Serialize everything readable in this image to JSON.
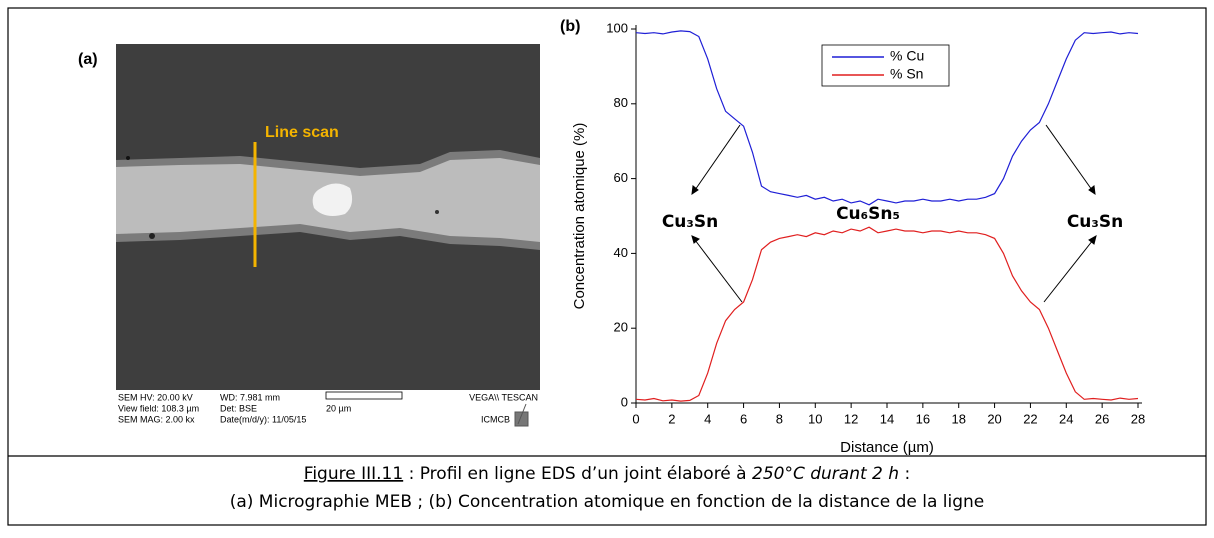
{
  "panel_a": {
    "label": "(a)",
    "line_scan": "Line scan",
    "info": [
      [
        "SEM HV: 20.00 kV",
        "WD: 7.981 mm",
        "VEGA\\\\ TESCAN"
      ],
      [
        "View field: 108.3 µm",
        "Det: BSE",
        "20 µm"
      ],
      [
        "SEM MAG: 2.00 kx",
        "Date(m/d/y): 11/05/15",
        "ICMCB"
      ]
    ]
  },
  "chart_data": {
    "type": "line",
    "panel_label": "(b)",
    "x_label": "Distance (µm)",
    "y_label": "Concentration atomique (%)",
    "xlim": [
      0,
      28
    ],
    "xticks": [
      0,
      2,
      4,
      6,
      8,
      10,
      12,
      14,
      16,
      18,
      20,
      22,
      24,
      26,
      28
    ],
    "ylim": [
      0,
      100
    ],
    "yticks": [
      0,
      20,
      40,
      60,
      80,
      100
    ],
    "legend": "top-center",
    "x": [
      0,
      0.5,
      1,
      1.5,
      2,
      2.5,
      3,
      3.5,
      4,
      4.5,
      5,
      5.5,
      6,
      6.5,
      7,
      7.5,
      8,
      8.5,
      9,
      9.5,
      10,
      10.5,
      11,
      11.5,
      12,
      12.5,
      13,
      13.5,
      14,
      14.5,
      15,
      15.5,
      16,
      16.5,
      17,
      17.5,
      18,
      18.5,
      19,
      19.5,
      20,
      20.5,
      21,
      21.5,
      22,
      22.5,
      23,
      23.5,
      24,
      24.5,
      25,
      25.5,
      26,
      26.5,
      27,
      27.5,
      28
    ],
    "series": [
      {
        "name": "% Cu",
        "color": "#1f1fd6",
        "values": [
          99,
          98.8,
          99,
          98.7,
          99.2,
          99.5,
          99.3,
          98,
          92,
          84,
          78,
          76,
          74,
          67,
          58,
          56.5,
          56,
          55.5,
          55,
          55.5,
          54.5,
          55,
          54,
          54.5,
          53.5,
          54,
          53,
          54.5,
          54,
          53.5,
          54,
          54,
          54.5,
          54,
          54,
          54.5,
          54,
          54.5,
          54.5,
          55,
          56,
          60,
          66,
          70,
          73,
          75,
          80,
          86,
          92,
          97,
          99,
          98.8,
          99,
          99.2,
          98.7,
          99,
          98.8
        ]
      },
      {
        "name": "% Sn",
        "color": "#e01f1f",
        "values": [
          1,
          0.8,
          1.2,
          0.6,
          0.8,
          0.5,
          0.7,
          2,
          8,
          16,
          22,
          25,
          27,
          33,
          41,
          43,
          44,
          44.5,
          45,
          44.5,
          45.5,
          45,
          46,
          45.5,
          46.5,
          46,
          47,
          45.5,
          46,
          46.5,
          46,
          46,
          45.5,
          46,
          46,
          45.5,
          46,
          45.5,
          45.5,
          45,
          44,
          40,
          34,
          30,
          27,
          25,
          20,
          14,
          8,
          3,
          1,
          1.2,
          1,
          0.8,
          1.3,
          1,
          1.2
        ]
      }
    ],
    "annotations": [
      "Cu₃Sn",
      "Cu₆Sn₅",
      "Cu₃Sn"
    ]
  },
  "caption": {
    "line1": [
      "Figure III.11",
      " : Profil en ligne EDS d’un joint élaboré à ",
      "250°C durant 2 h",
      " :"
    ],
    "line2": "(a) Micrographie MEB ; (b) Concentration atomique en fonction de la distance de la ligne"
  }
}
